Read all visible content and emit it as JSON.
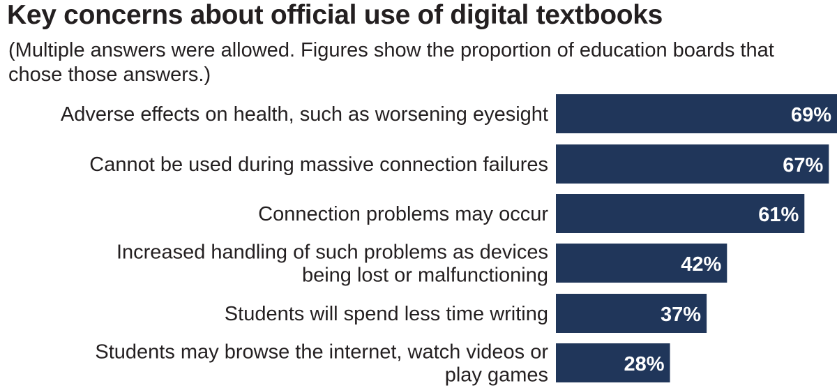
{
  "chart_data": {
    "type": "bar",
    "orientation": "horizontal",
    "title": "Key concerns about official use of digital textbooks",
    "subtitle": "(Multiple answers were allowed. Figures show the proportion of education boards that chose those answers.)",
    "categories": [
      [
        "Adverse effects on health, such as worsening eyesight"
      ],
      [
        "Cannot be used during massive connection failures"
      ],
      [
        "Connection problems may occur"
      ],
      [
        "Increased handling of such problems as devices",
        "being lost or malfunctioning"
      ],
      [
        "Students will spend less time writing"
      ],
      [
        "Students may browse the internet, watch videos or",
        "play games"
      ]
    ],
    "values": [
      69,
      67,
      61,
      42,
      37,
      28
    ],
    "value_labels": [
      "69%",
      "67%",
      "61%",
      "42%",
      "37%",
      "28%"
    ],
    "unit": "%",
    "grid": false,
    "legend": "none",
    "bar_color": "#20365a",
    "label_color": "#ffffff"
  }
}
